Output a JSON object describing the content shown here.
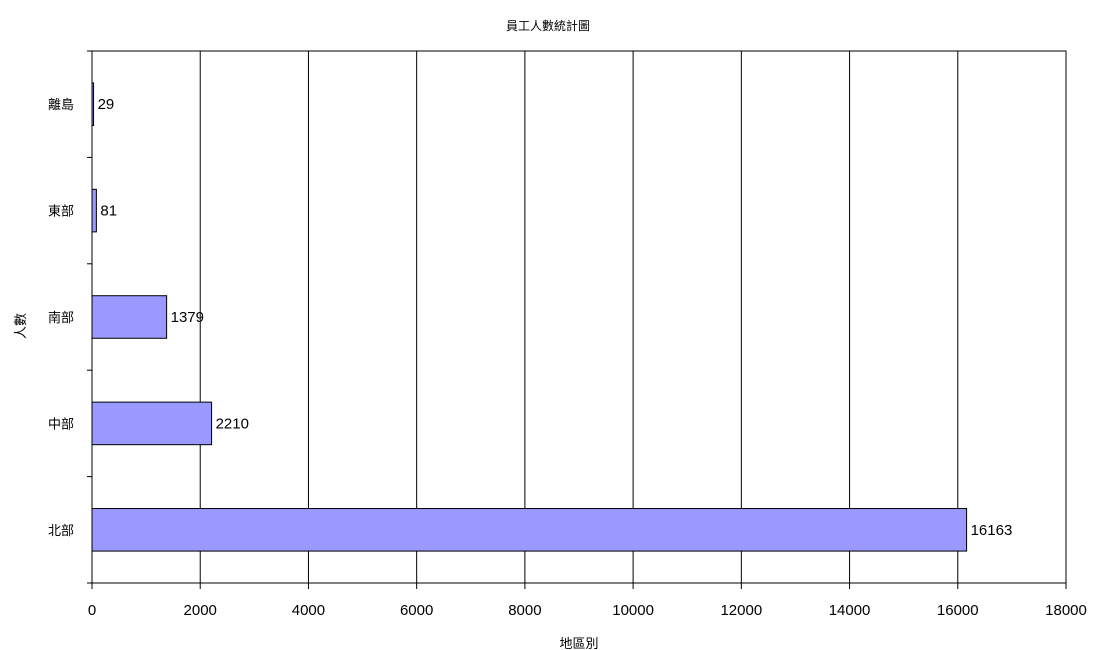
{
  "chart_data": {
    "type": "bar",
    "orientation": "horizontal",
    "title": "員工人數統計圖",
    "xlabel": "地區別",
    "ylabel": "人數",
    "categories": [
      "北部",
      "中部",
      "南部",
      "東部",
      "離島"
    ],
    "values": [
      16163,
      2210,
      1379,
      81,
      29
    ],
    "data_labels": [
      "16163",
      "2210",
      "1379",
      "81",
      "29"
    ],
    "xlim": [
      0,
      18000
    ],
    "x_ticks": [
      0,
      2000,
      4000,
      6000,
      8000,
      10000,
      12000,
      14000,
      16000,
      18000
    ],
    "x_tick_labels": [
      "0",
      "2000",
      "4000",
      "6000",
      "8000",
      "10000",
      "12000",
      "14000",
      "16000",
      "18000"
    ],
    "grid": "vertical",
    "legend": "none",
    "bar_color": "#9999ff",
    "bar_edge_color": "#000000"
  }
}
